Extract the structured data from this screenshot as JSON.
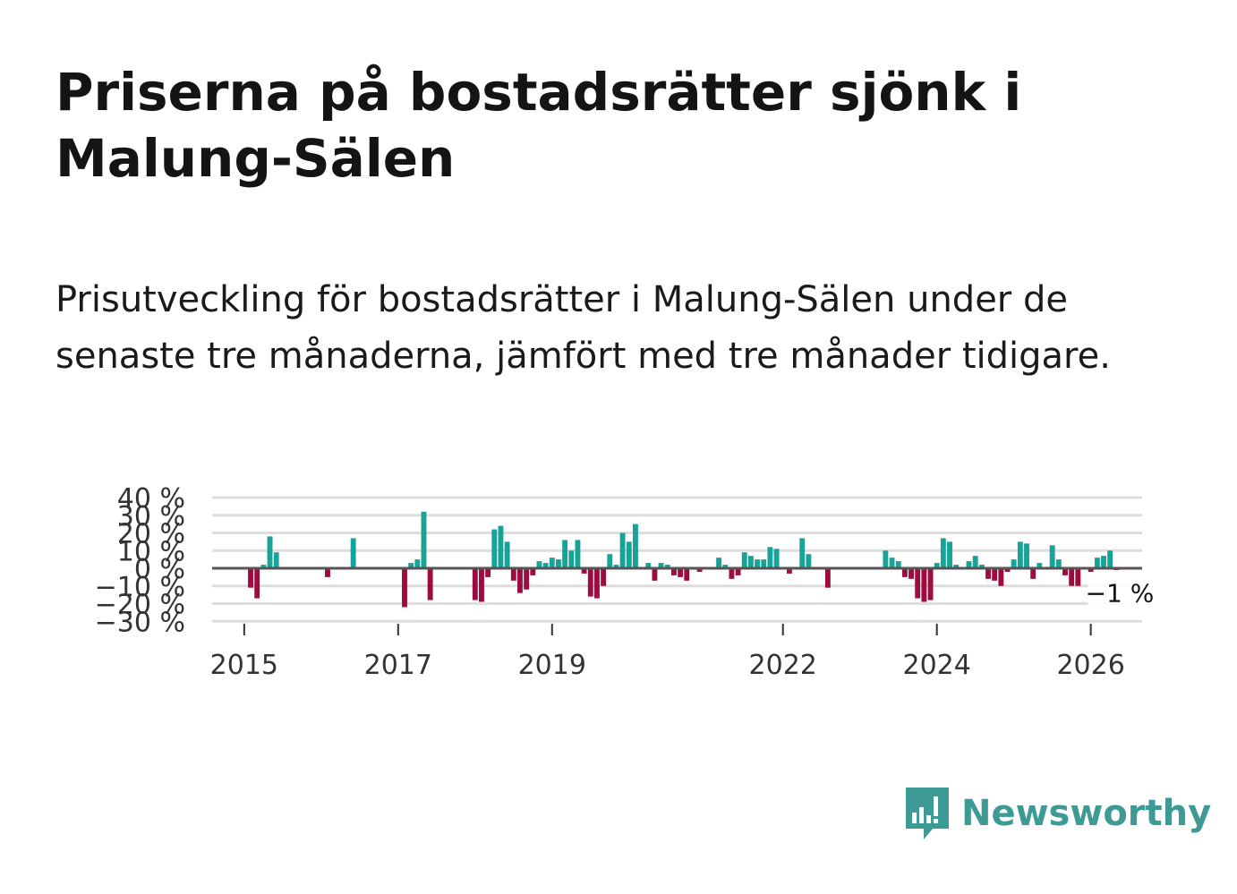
{
  "title": "Priserna på bostadsrätter sjönk i Malung-Sälen",
  "subtitle": "Prisutveckling för bostadsrätter i Malung-Sälen under de senaste tre månaderna, jämfört med tre månader tidigare.",
  "brand": {
    "name": "Newsworthy",
    "color": "#3e9a94"
  },
  "colors": {
    "positive": "#17a398",
    "negative": "#9e0b3f",
    "grid": "#dddddd",
    "zero": "#555555"
  },
  "chart_data": {
    "type": "bar",
    "title": "Priserna på bostadsrätter sjönk i Malung-Sälen",
    "xlabel": "",
    "ylabel": "",
    "ylim": [
      -30,
      40
    ],
    "yticks": [
      40,
      30,
      20,
      10,
      0,
      -10,
      -20,
      -30
    ],
    "ytick_labels": [
      "40 %",
      "30 %",
      "20 %",
      "10 %",
      "0 %",
      "−10 %",
      "−20 %",
      "−30 %"
    ],
    "xticks": [
      2015,
      2017,
      2019,
      2022,
      2024,
      2026
    ],
    "xtick_labels": [
      "2015",
      "2017",
      "2019",
      "2022",
      "2024",
      "2026"
    ],
    "grid": true,
    "x_start": 2014.583,
    "x_end": 2026.667,
    "series_start": {
      "year": 2015,
      "month": 1
    },
    "values": [
      0,
      -11,
      -17,
      2,
      18,
      9,
      0,
      0,
      0,
      0,
      0,
      0,
      0,
      -5,
      0,
      0,
      0,
      17,
      0,
      0,
      0,
      0,
      0,
      0,
      0,
      -22,
      3,
      5,
      32,
      -18,
      0,
      0,
      0,
      0,
      0,
      0,
      -18,
      -19,
      -5,
      22,
      24,
      15,
      -7,
      -14,
      -12,
      -4,
      4,
      3,
      6,
      5,
      16,
      10,
      16,
      -3,
      -16,
      -17,
      -10,
      8,
      2,
      20,
      15,
      25,
      0,
      3,
      -7,
      3,
      2,
      -4,
      -5,
      -7,
      0,
      -2,
      0,
      0,
      6,
      2,
      -6,
      -4,
      9,
      7,
      5,
      5,
      12,
      11,
      0,
      -3,
      0,
      17,
      8,
      0,
      0,
      -11,
      0,
      0,
      0,
      0,
      0,
      0,
      0,
      0,
      10,
      6,
      4,
      -5,
      -6,
      -17,
      -19,
      -18,
      3,
      17,
      15,
      2,
      0,
      4,
      7,
      2,
      -6,
      -7,
      -10,
      -2,
      5,
      15,
      14,
      -6,
      3,
      0,
      13,
      5,
      -4,
      -10,
      -10,
      0,
      -2,
      6,
      7,
      10,
      -1
    ],
    "last_value_label": "−1 %"
  }
}
